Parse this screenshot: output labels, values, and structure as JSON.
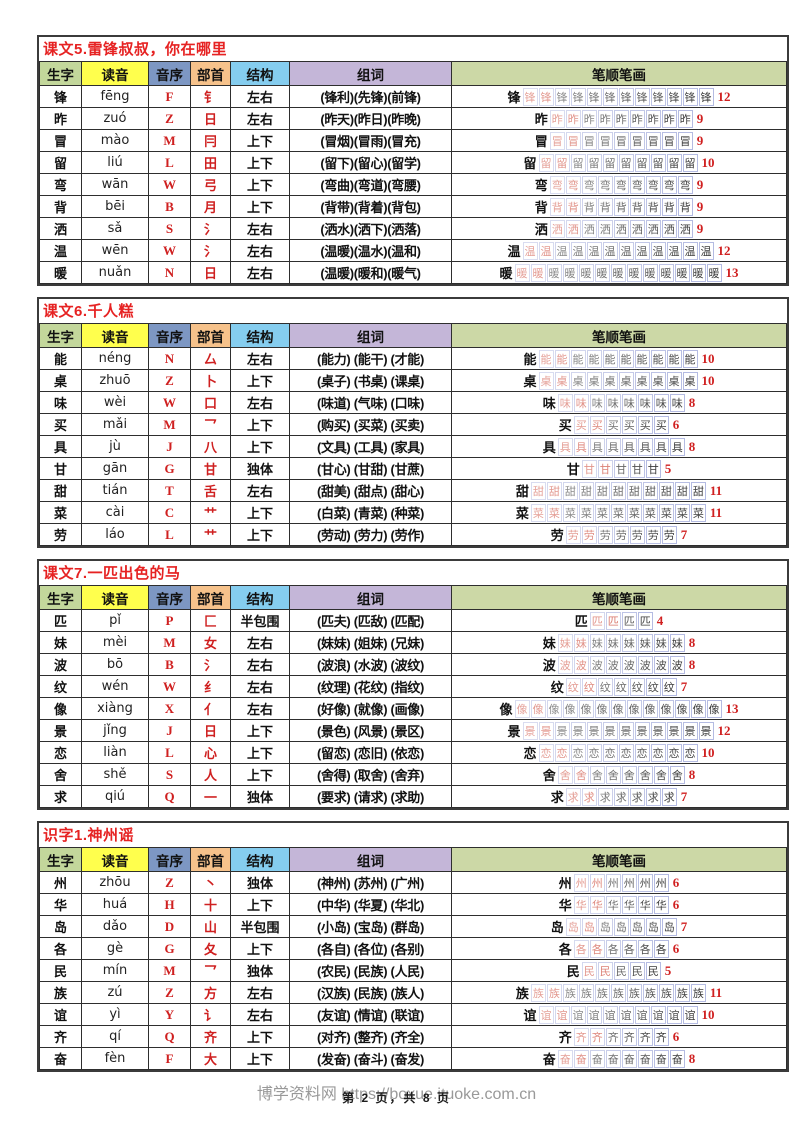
{
  "page": {
    "footer_watermark": "博学资料网 https://boxue.ituoke.com.cn",
    "footer_page": "第 2 页，共 8 页"
  },
  "accent_colors": {
    "section_title": "#e62222",
    "initial_letter": "#cf2020",
    "radical": "#cf2020",
    "stroke_count": "#d02020",
    "stroke_box_border": "#b4bbe2"
  },
  "columns": [
    {
      "key": "char",
      "label": "生字",
      "color": "#c3d79b"
    },
    {
      "key": "pinyin",
      "label": "读音",
      "color": "#ffff4d"
    },
    {
      "key": "initial",
      "label": "音序",
      "color": "#7d97c3"
    },
    {
      "key": "radical",
      "label": "部首",
      "color": "#f6c28b"
    },
    {
      "key": "structure",
      "label": "结构",
      "color": "#85cdef"
    },
    {
      "key": "words",
      "label": "组词",
      "color": "#c4b6d8"
    },
    {
      "key": "strokes",
      "label": "笔顺笔画",
      "color": "#ccd8a6"
    }
  ],
  "sections": [
    {
      "title": "课文5.雷锋叔叔，你在哪里",
      "rows": [
        {
          "char": "锋",
          "pinyin": "fēng",
          "initial": "F",
          "radical": "钅",
          "structure": "左右",
          "words": "(锋利)(先锋)(前锋)",
          "strokes": 12
        },
        {
          "char": "昨",
          "pinyin": "zuó",
          "initial": "Z",
          "radical": "日",
          "structure": "左右",
          "words": "(昨天)(昨日)(昨晚)",
          "strokes": 9
        },
        {
          "char": "冒",
          "pinyin": "mào",
          "initial": "M",
          "radical": "冃",
          "structure": "上下",
          "words": "(冒烟)(冒雨)(冒充)",
          "strokes": 9
        },
        {
          "char": "留",
          "pinyin": "liú",
          "initial": "L",
          "radical": "田",
          "structure": "上下",
          "words": "(留下)(留心)(留学)",
          "strokes": 10
        },
        {
          "char": "弯",
          "pinyin": "wān",
          "initial": "W",
          "radical": "弓",
          "structure": "上下",
          "words": "(弯曲)(弯道)(弯腰)",
          "strokes": 9
        },
        {
          "char": "背",
          "pinyin": "bēi",
          "initial": "B",
          "radical": "月",
          "structure": "上下",
          "words": "(背带)(背着)(背包)",
          "strokes": 9
        },
        {
          "char": "洒",
          "pinyin": "sǎ",
          "initial": "S",
          "radical": "氵",
          "structure": "左右",
          "words": "(洒水)(洒下)(洒落)",
          "strokes": 9
        },
        {
          "char": "温",
          "pinyin": "wēn",
          "initial": "W",
          "radical": "氵",
          "structure": "左右",
          "words": "(温暖)(温水)(温和)",
          "strokes": 12
        },
        {
          "char": "暖",
          "pinyin": "nuǎn",
          "initial": "N",
          "radical": "日",
          "structure": "左右",
          "words": "(温暖)(暖和)(暖气)",
          "strokes": 13
        }
      ]
    },
    {
      "title": "课文6.千人糕",
      "rows": [
        {
          "char": "能",
          "pinyin": "néng",
          "initial": "N",
          "radical": "厶",
          "structure": "左右",
          "words": "(能力) (能干) (才能)",
          "strokes": 10
        },
        {
          "char": "桌",
          "pinyin": "zhuō",
          "initial": "Z",
          "radical": "卜",
          "structure": "上下",
          "words": "(桌子) (书桌) (课桌)",
          "strokes": 10
        },
        {
          "char": "味",
          "pinyin": "wèi",
          "initial": "W",
          "radical": "口",
          "structure": "左右",
          "words": "(味道) (气味) (口味)",
          "strokes": 8
        },
        {
          "char": "买",
          "pinyin": "mǎi",
          "initial": "M",
          "radical": "乛",
          "structure": "上下",
          "words": "(购买) (买菜) (买卖)",
          "strokes": 6
        },
        {
          "char": "具",
          "pinyin": "jù",
          "initial": "J",
          "radical": "八",
          "structure": "上下",
          "words": "(文具) (工具) (家具)",
          "strokes": 8
        },
        {
          "char": "甘",
          "pinyin": "gān",
          "initial": "G",
          "radical": "甘",
          "structure": "独体",
          "words": "(甘心) (甘甜) (甘蔗)",
          "strokes": 5
        },
        {
          "char": "甜",
          "pinyin": "tián",
          "initial": "T",
          "radical": "舌",
          "structure": "左右",
          "words": "(甜美) (甜点) (甜心)",
          "strokes": 11
        },
        {
          "char": "菜",
          "pinyin": "cài",
          "initial": "C",
          "radical": "艹",
          "structure": "上下",
          "words": "(白菜) (青菜) (种菜)",
          "strokes": 11
        },
        {
          "char": "劳",
          "pinyin": "láo",
          "initial": "L",
          "radical": "艹",
          "structure": "上下",
          "words": "(劳动) (劳力) (劳作)",
          "strokes": 7
        }
      ]
    },
    {
      "title": "课文7.一匹出色的马",
      "rows": [
        {
          "char": "匹",
          "pinyin": "pǐ",
          "initial": "P",
          "radical": "匚",
          "structure": "半包围",
          "words": "(匹夫) (匹敌) (匹配)",
          "strokes": 4
        },
        {
          "char": "妹",
          "pinyin": "mèi",
          "initial": "M",
          "radical": "女",
          "structure": "左右",
          "words": "(妹妹) (姐妹) (兄妹)",
          "strokes": 8
        },
        {
          "char": "波",
          "pinyin": "bō",
          "initial": "B",
          "radical": "氵",
          "structure": "左右",
          "words": "(波浪) (水波) (波纹)",
          "strokes": 8
        },
        {
          "char": "纹",
          "pinyin": "wén",
          "initial": "W",
          "radical": "纟",
          "structure": "左右",
          "words": "(纹理) (花纹) (指纹)",
          "strokes": 7
        },
        {
          "char": "像",
          "pinyin": "xiàng",
          "initial": "X",
          "radical": "亻",
          "structure": "左右",
          "words": "(好像) (就像) (画像)",
          "strokes": 13
        },
        {
          "char": "景",
          "pinyin": "jǐng",
          "initial": "J",
          "radical": "日",
          "structure": "上下",
          "words": "(景色) (风景) (景区)",
          "strokes": 12
        },
        {
          "char": "恋",
          "pinyin": "liàn",
          "initial": "L",
          "radical": "心",
          "structure": "上下",
          "words": "(留恋) (恋旧) (依恋)",
          "strokes": 10
        },
        {
          "char": "舍",
          "pinyin": "shě",
          "initial": "S",
          "radical": "人",
          "structure": "上下",
          "words": "(舍得) (取舍) (舍弃)",
          "strokes": 8
        },
        {
          "char": "求",
          "pinyin": "qiú",
          "initial": "Q",
          "radical": "一",
          "structure": "独体",
          "words": "(要求) (请求) (求助)",
          "strokes": 7
        }
      ]
    },
    {
      "title": "识字1.神州谣",
      "rows": [
        {
          "char": "州",
          "pinyin": "zhōu",
          "initial": "Z",
          "radical": "丶",
          "structure": "独体",
          "words": "(神州) (苏州) (广州)",
          "strokes": 6
        },
        {
          "char": "华",
          "pinyin": "huá",
          "initial": "H",
          "radical": "十",
          "structure": "上下",
          "words": "(中华) (华夏) (华北)",
          "strokes": 6
        },
        {
          "char": "岛",
          "pinyin": "dǎo",
          "initial": "D",
          "radical": "山",
          "structure": "半包围",
          "words": "(小岛) (宝岛) (群岛)",
          "strokes": 7
        },
        {
          "char": "各",
          "pinyin": "gè",
          "initial": "G",
          "radical": "夂",
          "structure": "上下",
          "words": "(各自) (各位) (各别)",
          "strokes": 6
        },
        {
          "char": "民",
          "pinyin": "mín",
          "initial": "M",
          "radical": "乛",
          "structure": "独体",
          "words": "(农民) (民族) (人民)",
          "strokes": 5
        },
        {
          "char": "族",
          "pinyin": "zú",
          "initial": "Z",
          "radical": "方",
          "structure": "左右",
          "words": "(汉族) (民族) (族人)",
          "strokes": 11
        },
        {
          "char": "谊",
          "pinyin": "yì",
          "initial": "Y",
          "radical": "讠",
          "structure": "左右",
          "words": "(友谊) (情谊) (联谊)",
          "strokes": 10
        },
        {
          "char": "齐",
          "pinyin": "qí",
          "initial": "Q",
          "radical": "齐",
          "structure": "上下",
          "words": "(对齐) (整齐) (齐全)",
          "strokes": 6
        },
        {
          "char": "奋",
          "pinyin": "fèn",
          "initial": "F",
          "radical": "大",
          "structure": "上下",
          "words": "(发奋) (奋斗) (奋发)",
          "strokes": 8
        }
      ]
    }
  ]
}
